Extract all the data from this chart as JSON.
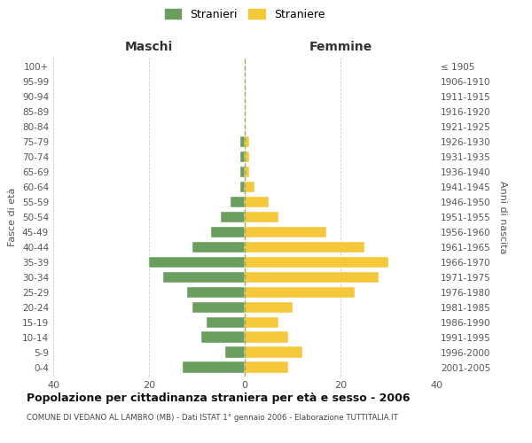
{
  "age_groups": [
    "0-4",
    "5-9",
    "10-14",
    "15-19",
    "20-24",
    "25-29",
    "30-34",
    "35-39",
    "40-44",
    "45-49",
    "50-54",
    "55-59",
    "60-64",
    "65-69",
    "70-74",
    "75-79",
    "80-84",
    "85-89",
    "90-94",
    "95-99",
    "100+"
  ],
  "birth_years": [
    "2001-2005",
    "1996-2000",
    "1991-1995",
    "1986-1990",
    "1981-1985",
    "1976-1980",
    "1971-1975",
    "1966-1970",
    "1961-1965",
    "1956-1960",
    "1951-1955",
    "1946-1950",
    "1941-1945",
    "1936-1940",
    "1931-1935",
    "1926-1930",
    "1921-1925",
    "1916-1920",
    "1911-1915",
    "1906-1910",
    "≤ 1905"
  ],
  "maschi": [
    13,
    4,
    9,
    8,
    11,
    12,
    17,
    20,
    11,
    7,
    5,
    3,
    1,
    1,
    1,
    1,
    0,
    0,
    0,
    0,
    0
  ],
  "femmine": [
    9,
    12,
    9,
    7,
    10,
    23,
    28,
    30,
    25,
    17,
    7,
    5,
    2,
    1,
    1,
    1,
    0,
    0,
    0,
    0,
    0
  ],
  "maschi_color": "#6a9e5f",
  "femmine_color": "#f5c83c",
  "background_color": "#ffffff",
  "grid_color": "#cccccc",
  "title": "Popolazione per cittadinanza straniera per età e sesso - 2006",
  "subtitle": "COMUNE DI VEDANO AL LAMBRO (MB) - Dati ISTAT 1° gennaio 2006 - Elaborazione TUTTITALIA.IT",
  "xlabel_left": "Maschi",
  "xlabel_right": "Femmine",
  "ylabel_left": "Fasce di età",
  "ylabel_right": "Anni di nascita",
  "legend_maschi": "Stranieri",
  "legend_femmine": "Straniere",
  "xlim": 40,
  "bar_height": 0.75
}
